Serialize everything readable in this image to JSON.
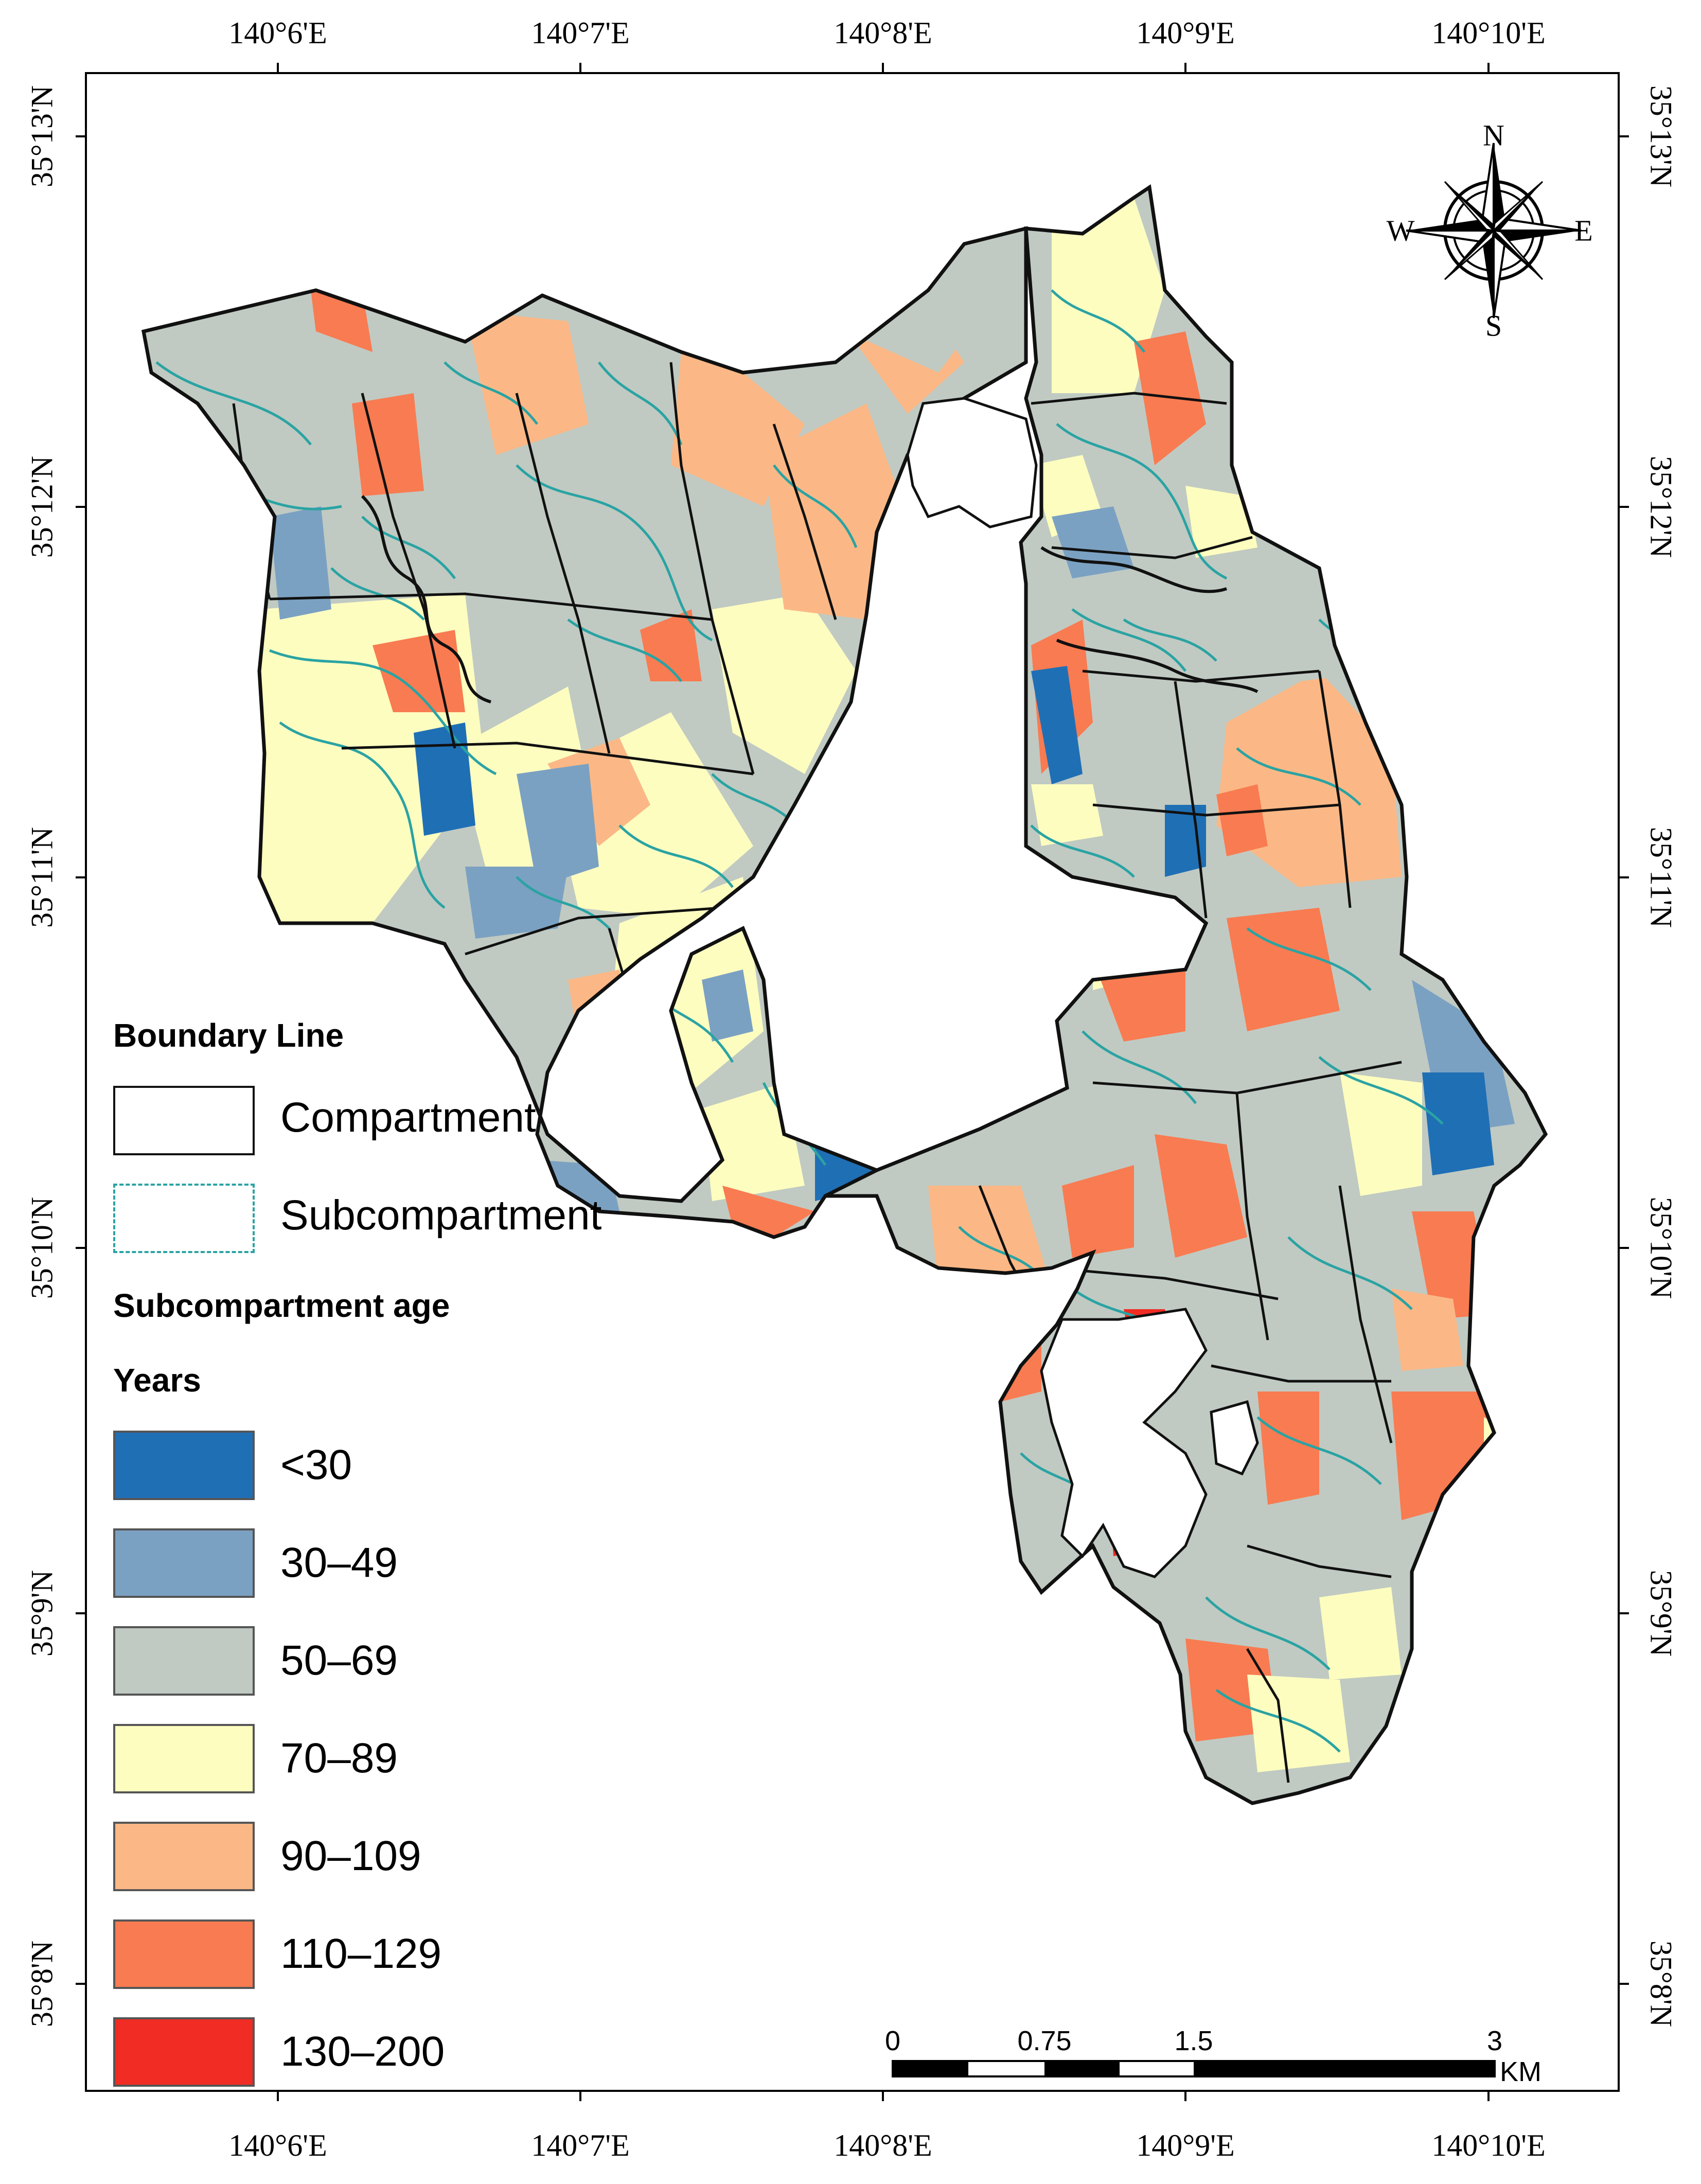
{
  "map": {
    "longitude_labels": [
      "140°6'E",
      "140°7'E",
      "140°8'E",
      "140°9'E",
      "140°10'E"
    ],
    "latitude_labels": [
      "35°13'N",
      "35°12'N",
      "35°11'N",
      "35°10'N",
      "35°9'N",
      "35°8'N"
    ]
  },
  "legend": {
    "boundary_title": "Boundary Line",
    "compartment_label": "Compartment",
    "subcompartment_label": "Subcompartment",
    "age_title": "Subcompartment age",
    "years_title": "Years",
    "classes": [
      {
        "label": "<30",
        "color": "#1f6fb5"
      },
      {
        "label": "30–49",
        "color": "#7ba1c2"
      },
      {
        "label": "50–69",
        "color": "#c0cac2"
      },
      {
        "label": "70–89",
        "color": "#fdfdc0"
      },
      {
        "label": "90–109",
        "color": "#fbb886"
      },
      {
        "label": "110–129",
        "color": "#f97b51"
      },
      {
        "label": "130–200",
        "color": "#f02c24"
      }
    ],
    "subcompartment_line_color": "#2aa3a3"
  },
  "scale_bar": {
    "ticks": [
      "0",
      "0.75",
      "1.5",
      "3"
    ],
    "unit": "KM"
  },
  "north_arrow": {
    "n": "N",
    "s": "S",
    "e": "E",
    "w": "W"
  }
}
